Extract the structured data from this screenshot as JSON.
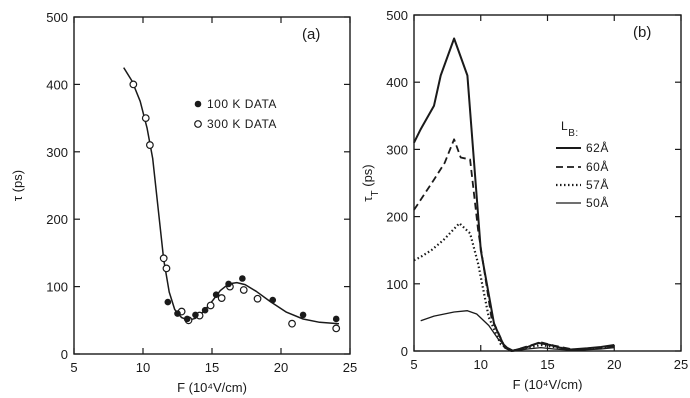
{
  "chart_data": [
    {
      "type": "scatter",
      "panel_label": "(a)",
      "ylabel": "τ (ps)",
      "xlabel": "F (10⁴V/cm)",
      "xlim": [
        5,
        25
      ],
      "ylim": [
        0,
        500
      ],
      "xticks": [
        5,
        10,
        15,
        20,
        25
      ],
      "yticks": [
        0,
        100,
        200,
        300,
        400,
        500
      ],
      "legend_placement": "upper-right",
      "series": [
        {
          "name": "100 K DATA",
          "marker": "filled-circle",
          "points": [
            [
              11.8,
              77
            ],
            [
              12.5,
              60
            ],
            [
              13.2,
              52
            ],
            [
              13.8,
              58
            ],
            [
              14.5,
              65
            ],
            [
              15.3,
              88
            ],
            [
              16.2,
              104
            ],
            [
              17.2,
              112
            ],
            [
              19.4,
              80
            ],
            [
              21.6,
              58
            ],
            [
              24.0,
              52
            ]
          ]
        },
        {
          "name": "300 K DATA",
          "marker": "open-circle",
          "points": [
            [
              9.3,
              400
            ],
            [
              10.2,
              350
            ],
            [
              10.5,
              310
            ],
            [
              11.5,
              142
            ],
            [
              11.7,
              127
            ],
            [
              12.8,
              63
            ],
            [
              13.3,
              50
            ],
            [
              14.1,
              57
            ],
            [
              14.9,
              72
            ],
            [
              15.7,
              83
            ],
            [
              16.3,
              100
            ],
            [
              17.3,
              95
            ],
            [
              18.3,
              82
            ],
            [
              20.8,
              45
            ],
            [
              24.0,
              38
            ]
          ]
        },
        {
          "name": "",
          "style": "fit-curve",
          "points": [
            [
              8.6,
              425
            ],
            [
              9.2,
              405
            ],
            [
              9.8,
              375
            ],
            [
              10.3,
              335
            ],
            [
              10.7,
              290
            ],
            [
              11.1,
              215
            ],
            [
              11.5,
              140
            ],
            [
              11.9,
              92
            ],
            [
              12.3,
              66
            ],
            [
              12.8,
              54
            ],
            [
              13.3,
              50
            ],
            [
              13.8,
              53
            ],
            [
              14.4,
              63
            ],
            [
              15.0,
              78
            ],
            [
              15.6,
              94
            ],
            [
              16.2,
              104
            ],
            [
              16.8,
              106
            ],
            [
              17.4,
              103
            ],
            [
              18.2,
              93
            ],
            [
              19.2,
              78
            ],
            [
              20.4,
              62
            ],
            [
              21.6,
              52
            ],
            [
              22.8,
              47
            ],
            [
              24.2,
              45
            ]
          ]
        }
      ]
    },
    {
      "type": "line",
      "panel_label": "(b)",
      "ylabel": "τ_T (ps)",
      "xlabel": "F (10⁴V/cm)",
      "xlim": [
        5,
        25
      ],
      "ylim": [
        0,
        500
      ],
      "xticks": [
        5,
        10,
        15,
        20,
        25
      ],
      "yticks": [
        0,
        100,
        200,
        300,
        400,
        500
      ],
      "legend_title": "L_B:",
      "legend_placement": "right",
      "series": [
        {
          "name": "62Å",
          "style": "solid",
          "points": [
            [
              5,
              310
            ],
            [
              5.5,
              330
            ],
            [
              6.5,
              365
            ],
            [
              7.0,
              410
            ],
            [
              8.0,
              465
            ],
            [
              9.0,
              410
            ],
            [
              10.0,
              150
            ],
            [
              11.0,
              40
            ],
            [
              11.8,
              5
            ],
            [
              12.3,
              0
            ],
            [
              13.5,
              6
            ],
            [
              14.3,
              12
            ],
            [
              15.2,
              9
            ],
            [
              16.5,
              2
            ],
            [
              18.0,
              4
            ],
            [
              19.0,
              6
            ],
            [
              20.0,
              9
            ]
          ]
        },
        {
          "name": "60Å",
          "style": "dashed",
          "points": [
            [
              5,
              210
            ],
            [
              5.5,
              225
            ],
            [
              6.5,
              255
            ],
            [
              7.3,
              280
            ],
            [
              8.0,
              315
            ],
            [
              8.5,
              288
            ],
            [
              9.2,
              285
            ],
            [
              9.8,
              180
            ],
            [
              10.8,
              50
            ],
            [
              11.8,
              6
            ],
            [
              12.4,
              0
            ],
            [
              13.5,
              7
            ],
            [
              14.5,
              13
            ],
            [
              15.5,
              8
            ],
            [
              17.0,
              2
            ],
            [
              19.0,
              5
            ],
            [
              20.0,
              7
            ]
          ]
        },
        {
          "name": "57Å",
          "style": "dotted",
          "points": [
            [
              5,
              135
            ],
            [
              5.5,
              140
            ],
            [
              6.3,
              150
            ],
            [
              7.2,
              165
            ],
            [
              8.4,
              190
            ],
            [
              9.2,
              175
            ],
            [
              9.8,
              130
            ],
            [
              10.6,
              50
            ],
            [
              11.5,
              10
            ],
            [
              12.3,
              0
            ],
            [
              13.5,
              5
            ],
            [
              14.5,
              9
            ],
            [
              15.5,
              6
            ],
            [
              17.0,
              2
            ],
            [
              19.0,
              4
            ],
            [
              20.0,
              6
            ]
          ]
        },
        {
          "name": "50Å",
          "style": "thin-solid",
          "points": [
            [
              5.5,
              45
            ],
            [
              6.5,
              52
            ],
            [
              8.0,
              58
            ],
            [
              9.0,
              60
            ],
            [
              9.7,
              55
            ],
            [
              10.6,
              38
            ],
            [
              11.3,
              18
            ],
            [
              12.0,
              5
            ],
            [
              12.5,
              0
            ],
            [
              13.5,
              3
            ],
            [
              14.5,
              5
            ],
            [
              15.5,
              3
            ],
            [
              17.0,
              1
            ],
            [
              19.0,
              3
            ],
            [
              20.0,
              5
            ]
          ]
        }
      ]
    }
  ]
}
